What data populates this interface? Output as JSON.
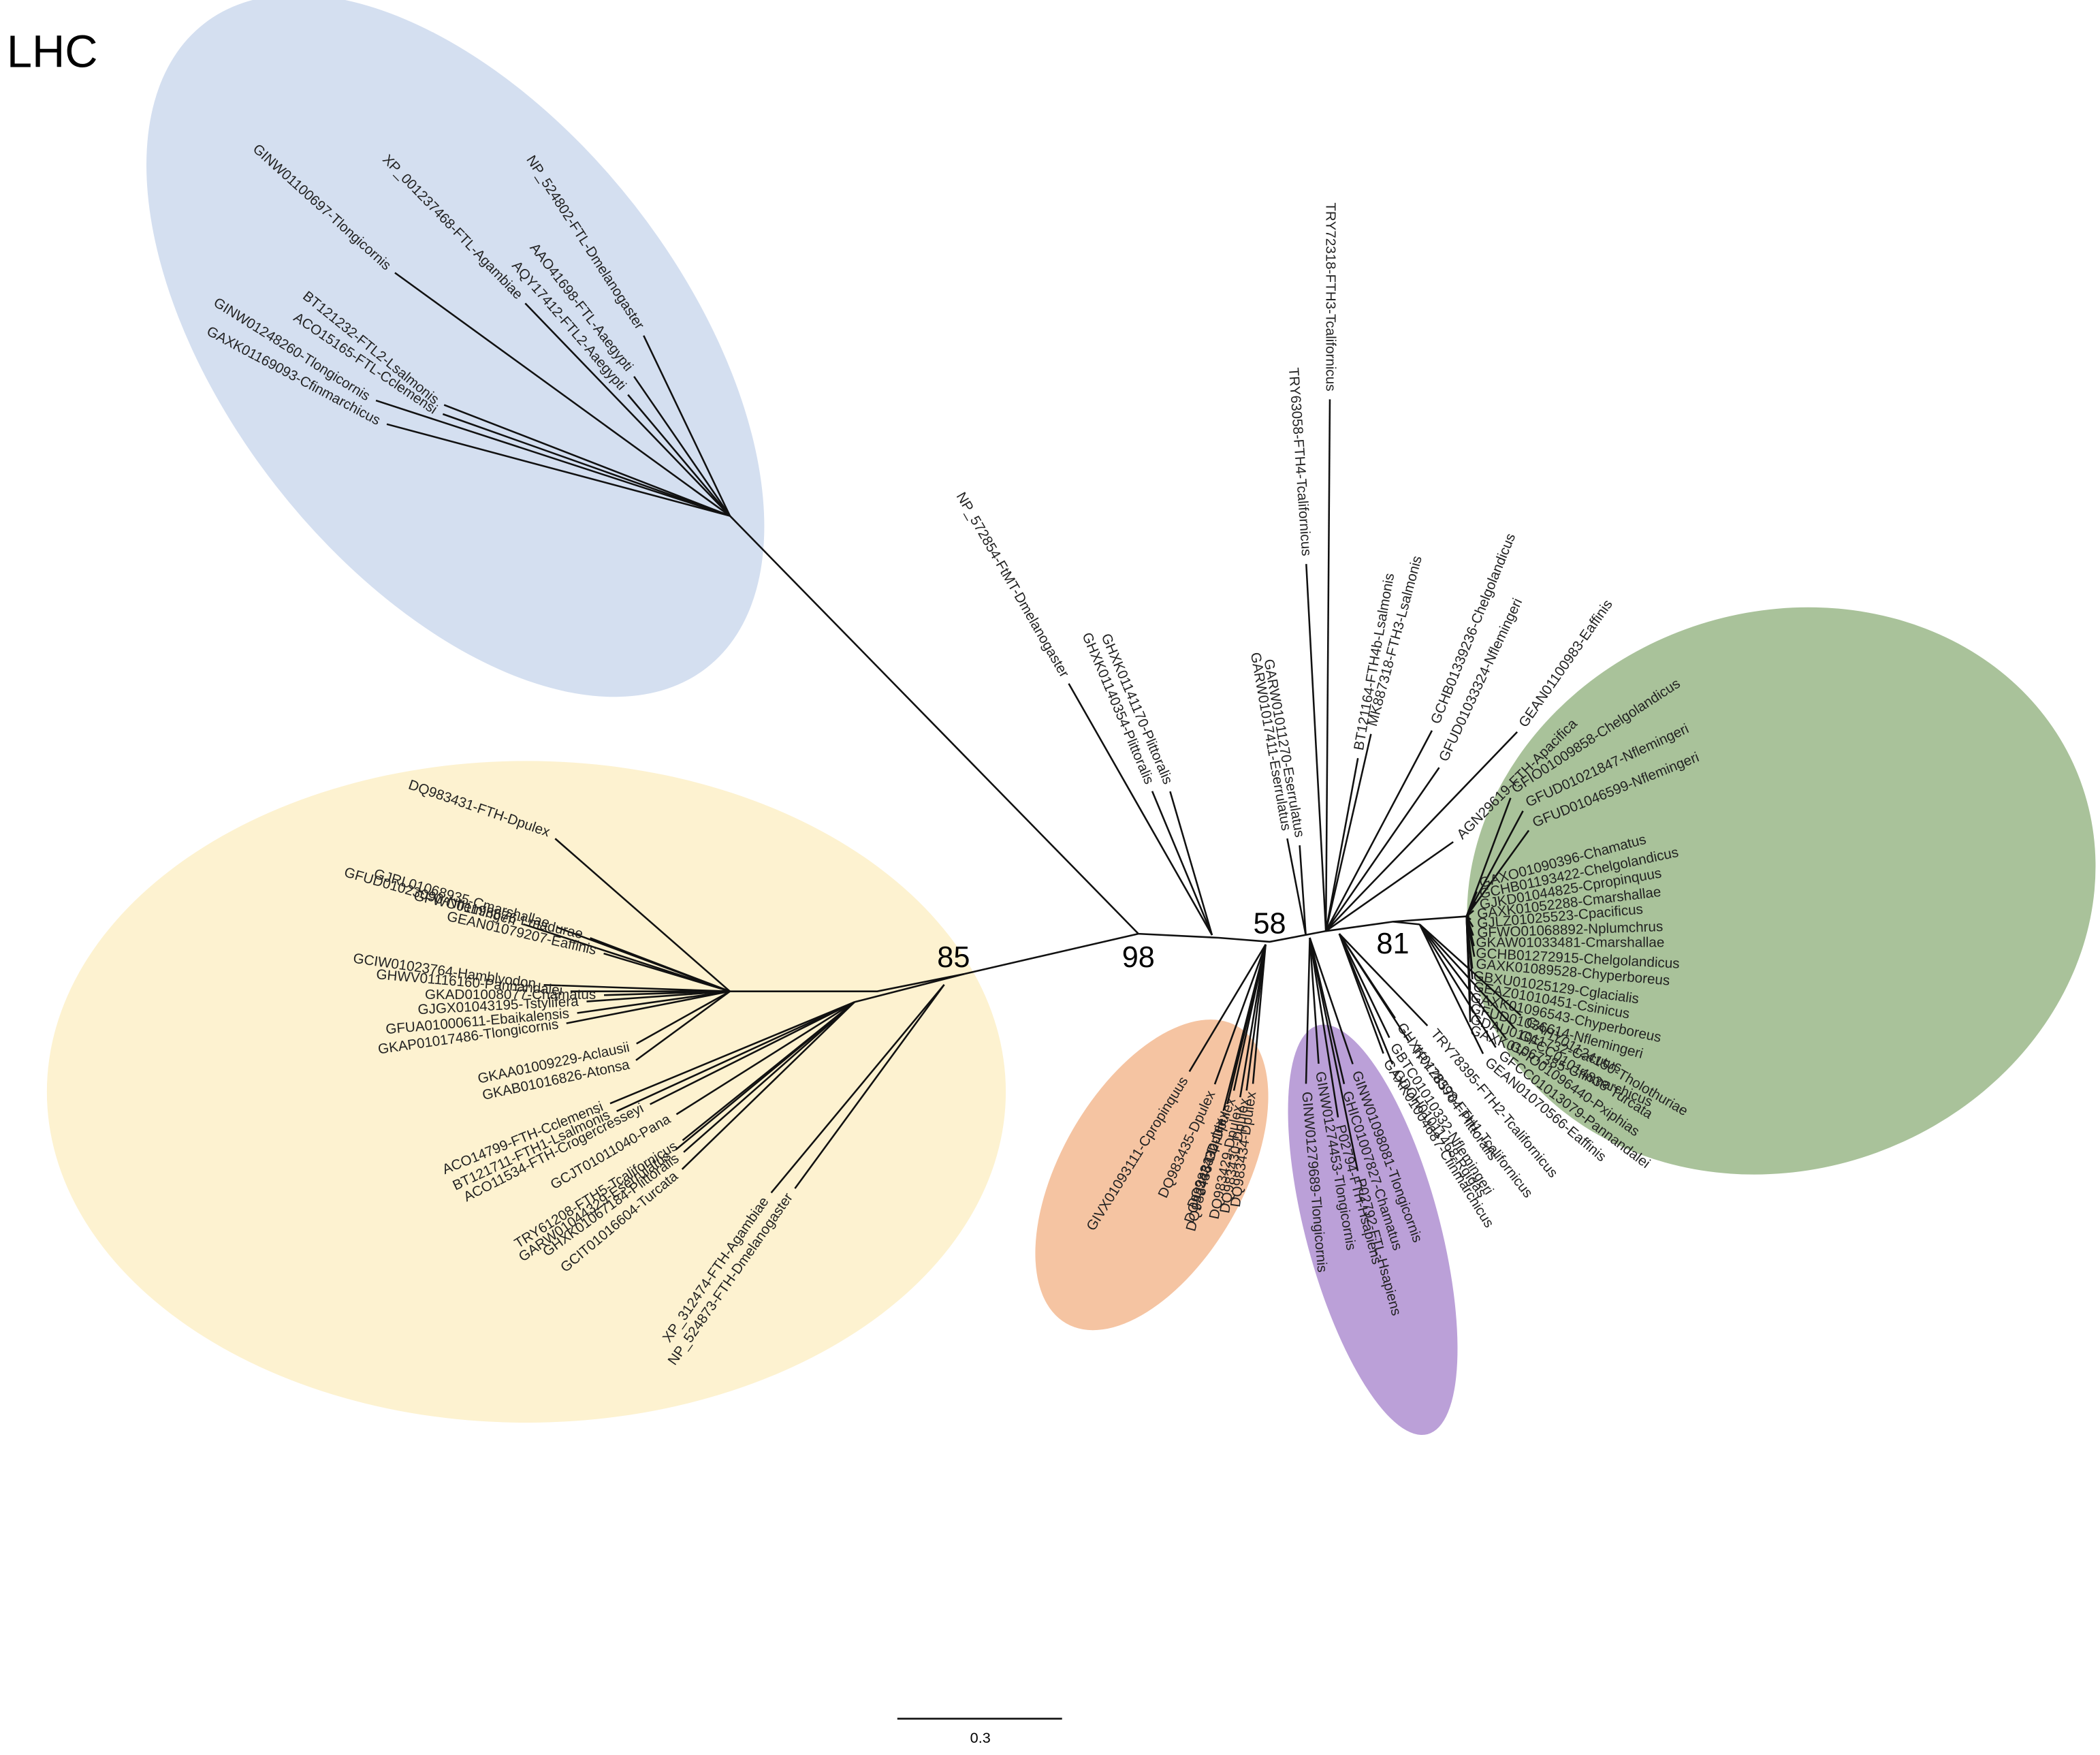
{
  "title": "LHC",
  "support_values": [
    85,
    98,
    58,
    81
  ],
  "scale_bar": {
    "label": "0.3"
  },
  "groups": [
    {
      "leaves": [
        "NP_524802-FTL-Dmelanogaster",
        "XP_001237468-FTL-Agambiae",
        "AAO41698-FTL-Aaegypti",
        "AQY17412-FTL2-Aaegypti",
        "GINW01100697-Tlongicornis",
        "BT121232-FTL2-Lsalmonis",
        "ACO15165-FTL-Cclemensi",
        "GINW01248260-Tlongicornis",
        "GAXK01169093-Cfinmarchicus"
      ]
    },
    {
      "leaves": [
        "DQ983431-FTH-Dpulex",
        "GJRL01068935-Cmarshallae",
        "GFUD01023090-Nflemingeri",
        "GFWO01198676-Lmadurae",
        "GEAN01079207-Eaffinis",
        "GCIW01023764-Hamblyodon",
        "GHWV01116160-Pannandalei",
        "GKAD01008077-Chamatus",
        "GJGX01043195-Tstylifera",
        "GFUA01000611-Ebaikalensis",
        "GKAP01017486-Tlongicornis",
        "GKAA01009229-Aclausii",
        "GKAB01016826-Atonsa"
      ]
    },
    {
      "leaves": [
        "ACO14799-FTH-Cclemensi",
        "BT121711-FTH1-Lsalmonis",
        "ACO11534-FTH-Crogercresseyi",
        "GCJT01011040-Pana",
        "TRY61208-FTH5-Tcalifornicus",
        "GARW01044329-Eserrulatus",
        "GHXK01067184-Plittoralis",
        "GCIT01016604-Turcata"
      ]
    },
    {
      "leaves": [
        "XP_312474-FTH-Agambiae",
        "NP_524873-FTH-Dmelanogaster"
      ]
    },
    {
      "leaves": [
        "NP_572854-FtMT-Dmelanogaster",
        "GHXK01141170-Plittoralis",
        "GHXK01140354-Plittoralis"
      ]
    },
    {
      "leaves": [
        "TRY72318-FTH3-Tcalifornicus",
        "TRY63058-FTH4-Tcalifornicus",
        "BT121164-FTH4b-Lsalmonis",
        "MK887318-FTH3-Lsalmonis",
        "GCHB01339236-Chelgolandicus",
        "GFUD01033324-Nflemingeri",
        "GEAN01100983-Eaffinis",
        "AGN29619-FTH-Apacifica"
      ]
    },
    {
      "leaves": [
        "GARW01011270-Eserrulatus",
        "GARW01017411-Eserrulatus"
      ]
    },
    {
      "leaves": [
        "GFIO01009858-Chelgolandicus",
        "GFUD01021847-Nflemingeri",
        "GFUD01046599-Nflemingeri",
        "GAXO01090396-Chamatus",
        "GCHB01193422-Chelgolandicus",
        "GJKD01044825-Cpropinquus",
        "GAXK01052288-Cmarshallae",
        "GJLZ01025523-Cpacificus",
        "GFWO01068892-Nplumchrus",
        "GKAW01033481-Cmarshallae",
        "GCHB01272915-Chelgolandicus",
        "GAXK01089528-Chyperboreus",
        "GBXU01025129-Cglacialis",
        "GEAZ01010451-Csinicus",
        "GAXK01096543-Chyperboreus",
        "GFUD01036614-Nflemingeri",
        "GDAU01011732-Cacutus",
        "GAXK01067385-Cfinmarchicus"
      ]
    },
    {
      "leaves": [
        "GAHY01124150-Tholothuriae",
        "GFCC01014838-Turcata",
        "GFIO01096440-Pxiphias",
        "GFCC01013079-Pannandalei",
        "GEAN01070566-Eaffinis"
      ]
    },
    {
      "leaves": [
        "TRY78395-FTH2-Tcalifornicus",
        "TRY78398-FTH1-Tcalifornicus",
        "GHXK01285704-Plittoralis",
        "GBTC01010332-Nflemingeri",
        "GAXK01004687-Cfinmarchicus",
        "GDOH01011468-Rgigas"
      ]
    },
    {
      "leaves": [
        "GINW01098081-Tlongicornis",
        "GHIC01007827-Chamatus",
        "P02794-FTH-Hsapiens",
        "P02792-FTL-Hsapiens",
        "GINW01274453-Tlongicornis",
        "GINW01279689-Tlongicornis"
      ]
    },
    {
      "leaves": [
        "GIVX01093111-Cpropinquus",
        "DQ983435-Dpulex",
        "DQ983432-Dpulex",
        "DQ983433-Dpulex",
        "DQ983436-Dpulex",
        "DQ983429-Dpulex",
        "DQ983430-Dpulex",
        "DQ983434-Dpulex"
      ]
    }
  ]
}
